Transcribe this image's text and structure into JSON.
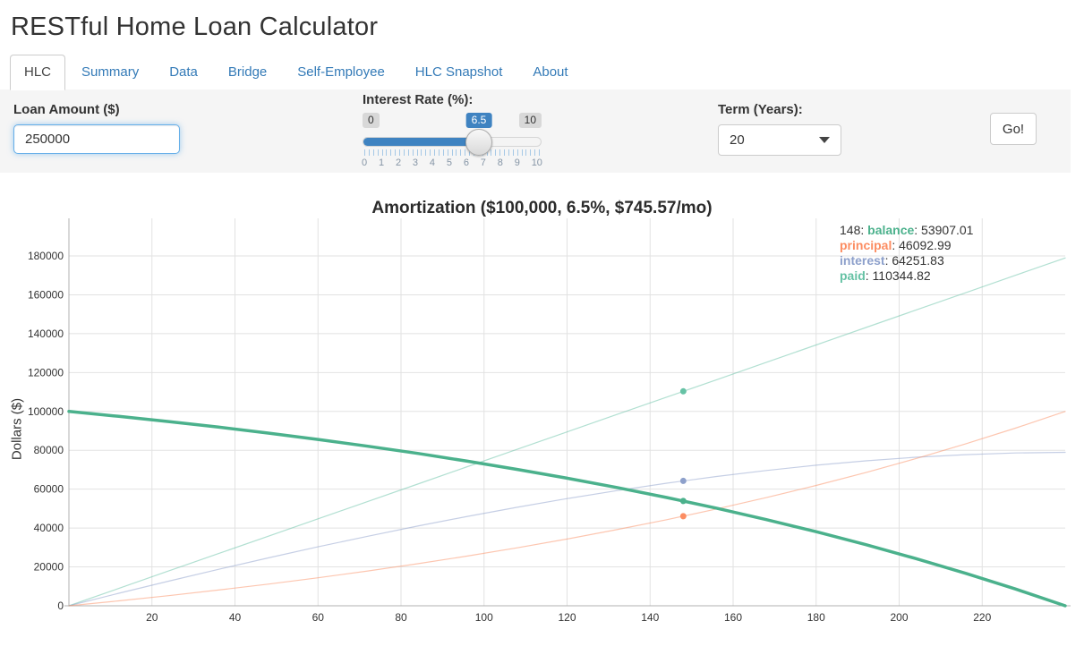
{
  "page": {
    "title": "RESTful Home Loan Calculator"
  },
  "tabs": [
    {
      "label": "HLC",
      "active": true
    },
    {
      "label": "Summary",
      "active": false
    },
    {
      "label": "Data",
      "active": false
    },
    {
      "label": "Bridge",
      "active": false
    },
    {
      "label": "Self-Employee",
      "active": false
    },
    {
      "label": "HLC Snapshot",
      "active": false
    },
    {
      "label": "About",
      "active": false
    }
  ],
  "form": {
    "loan_amount": {
      "label": "Loan Amount ($)",
      "value": "250000"
    },
    "interest_rate": {
      "label": "Interest Rate (%):",
      "min": 0,
      "max": 10,
      "value": 6.5,
      "min_label": "0",
      "max_label": "10",
      "value_label": "6.5",
      "tick_labels": [
        "0",
        "1",
        "2",
        "3",
        "4",
        "5",
        "6",
        "7",
        "8",
        "9",
        "10"
      ]
    },
    "term": {
      "label": "Term (Years):",
      "value": "20"
    },
    "go_button": "Go!"
  },
  "chart_data": {
    "type": "line",
    "title": "Amortization ($100,000, 6.5%, $745.57/mo)",
    "xlabel": "",
    "ylabel": "Dollars ($)",
    "xlim": [
      0,
      240
    ],
    "ylim": [
      0,
      199000
    ],
    "grid": true,
    "legend_position": "top-right",
    "x_ticks": [
      20,
      40,
      60,
      80,
      100,
      120,
      140,
      160,
      180,
      200,
      220
    ],
    "y_ticks": [
      0,
      20000,
      40000,
      60000,
      80000,
      100000,
      120000,
      140000,
      160000,
      180000
    ],
    "x": [
      0,
      12,
      24,
      36,
      48,
      60,
      72,
      84,
      96,
      108,
      120,
      132,
      144,
      156,
      168,
      180,
      192,
      204,
      216,
      228,
      240
    ],
    "series": [
      {
        "name": "paid",
        "color": "#66c2a5",
        "line_width": 1.2,
        "line_opacity": 0.5,
        "values": [
          0,
          8946.8,
          17893.7,
          26840.5,
          35787.4,
          44734.2,
          53681.0,
          62627.9,
          71574.7,
          80521.6,
          89468.4,
          98415.2,
          107362.1,
          116308.9,
          125255.8,
          134202.6,
          143149.4,
          152096.3,
          161043.1,
          169989.6,
          178936.8
        ]
      },
      {
        "name": "interest",
        "color": "#8da0cb",
        "line_width": 1.2,
        "line_opacity": 0.5,
        "values": [
          0,
          6425.6,
          12682.1,
          18759.2,
          24644.0,
          30323.0,
          35783.0,
          41010.7,
          45988.3,
          50700.6,
          55128.3,
          59253.8,
          63057.1,
          66516.0,
          69605.4,
          72304.9,
          74584.9,
          76417.5,
          77775.6,
          78624.5,
          78936.8
        ]
      },
      {
        "name": "principal",
        "color": "#fc8d62",
        "line_width": 1.2,
        "line_opacity": 0.5,
        "values": [
          0,
          2521.2,
          5211.6,
          8081.3,
          11143.4,
          14411.2,
          17898.0,
          21617.2,
          25586.4,
          29821.0,
          34340.1,
          39161.4,
          44305.0,
          49792.9,
          55650.4,
          61897.7,
          68564.5,
          75678.8,
          83267.5,
          91365.1,
          100000.0
        ]
      },
      {
        "name": "balance",
        "color": "#4bb18c",
        "line_width": 3.5,
        "line_opacity": 1,
        "values": [
          100000,
          97478.8,
          94788.4,
          91918.7,
          88856.6,
          85588.8,
          82102.0,
          78382.8,
          74413.6,
          70179.0,
          65659.9,
          60838.6,
          55695.0,
          50207.1,
          44349.6,
          38102.3,
          31435.5,
          24321.2,
          16732.5,
          8634.9,
          0
        ]
      }
    ],
    "highlight": {
      "x": 148,
      "points": [
        {
          "series": "balance",
          "value": 53907.01
        },
        {
          "series": "principal",
          "value": 46092.99
        },
        {
          "series": "interest",
          "value": 64251.83
        },
        {
          "series": "paid",
          "value": 110344.82
        }
      ]
    }
  }
}
